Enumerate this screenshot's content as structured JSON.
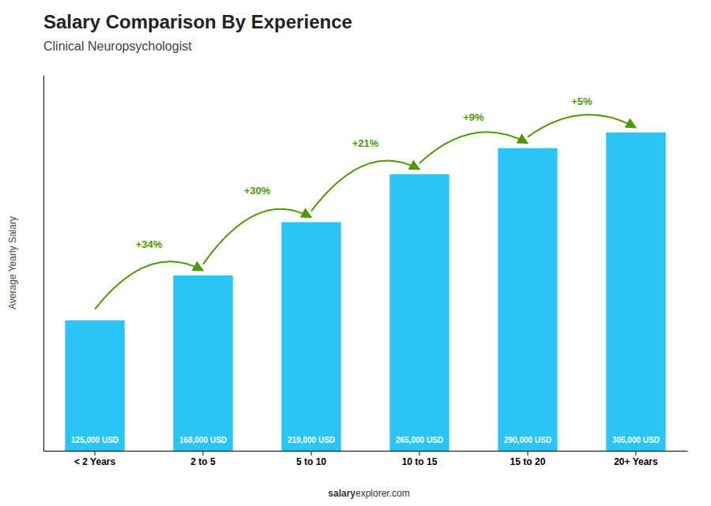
{
  "chart_data": {
    "type": "bar",
    "title": "Salary Comparison By Experience",
    "subtitle": "Clinical Neuropsychologist",
    "categories": [
      "< 2 Years",
      "2 to 5",
      "5 to 10",
      "10 to 15",
      "15 to 20",
      "20+ Years"
    ],
    "values": [
      125000,
      168000,
      219000,
      265000,
      290000,
      305000
    ],
    "value_labels": [
      "125,000 USD",
      "168,000 USD",
      "219,000 USD",
      "265,000 USD",
      "290,000 USD",
      "305,000 USD"
    ],
    "data_labels": true,
    "color": "#29c5f6",
    "ylabel": "Average Yearly Salary",
    "ylim": [
      0,
      360000
    ],
    "yticks": [],
    "tick_labels": "x",
    "grid": false,
    "annotations": [
      "+34%",
      "+30%",
      "+21%",
      "+9%",
      "+5%"
    ],
    "footer": [
      "salary",
      "explorer.com"
    ]
  }
}
